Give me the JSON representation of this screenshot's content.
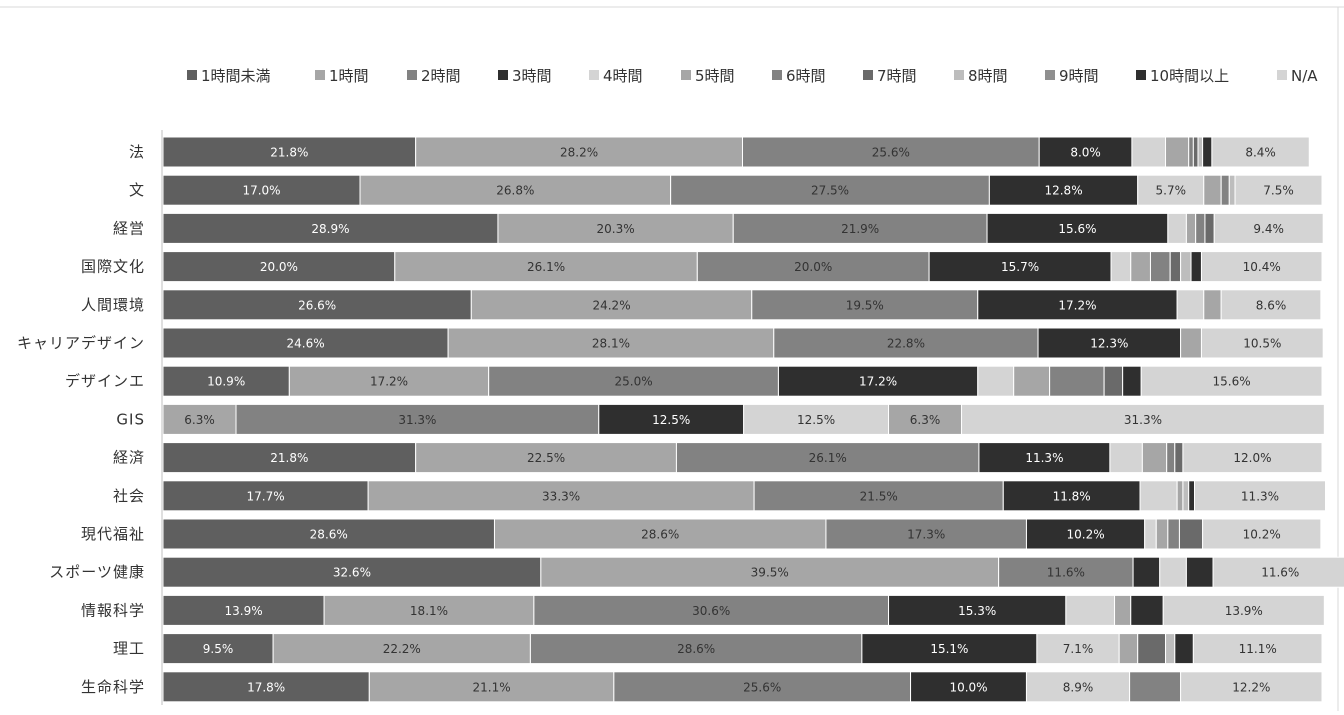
{
  "chart_data": {
    "type": "bar",
    "orientation": "horizontal",
    "stacked": true,
    "normalized_percent": true,
    "legend_position": "top",
    "grid": false,
    "xlim": [
      0,
      100
    ],
    "title": "",
    "xlabel": "",
    "ylabel": "",
    "categories": [
      "法",
      "文",
      "経営",
      "国際文化",
      "人間環境",
      "キャリアデザイン",
      "デザインエ",
      "GIS",
      "経済",
      "社会",
      "現代福祉",
      "スポーツ健康",
      "情報科学",
      "理工",
      "生命科学"
    ],
    "series": [
      {
        "name": "1時間未満",
        "color": "#5f5f5f",
        "label_color": "#ffffff",
        "values": [
          21.8,
          17.0,
          28.9,
          20.0,
          26.6,
          24.6,
          10.9,
          0,
          21.8,
          17.7,
          28.6,
          32.6,
          13.9,
          9.5,
          17.8
        ]
      },
      {
        "name": "1時間",
        "color": "#a6a6a6",
        "label_color": "#333333",
        "values": [
          28.2,
          26.8,
          20.3,
          26.1,
          24.2,
          28.1,
          17.2,
          6.3,
          22.5,
          33.3,
          28.6,
          39.5,
          18.1,
          22.2,
          21.1
        ]
      },
      {
        "name": "2時間",
        "color": "#828282",
        "label_color": "#333333",
        "values": [
          25.6,
          27.5,
          21.9,
          20.0,
          19.5,
          22.8,
          25.0,
          31.3,
          26.1,
          21.5,
          17.3,
          11.6,
          30.6,
          28.6,
          25.6
        ]
      },
      {
        "name": "3時間",
        "color": "#2f2f2f",
        "label_color": "#ffffff",
        "values": [
          8.0,
          12.8,
          15.6,
          15.7,
          17.2,
          12.3,
          17.2,
          12.5,
          11.3,
          11.8,
          10.2,
          2.3,
          15.3,
          15.1,
          10.0
        ]
      },
      {
        "name": "4時間",
        "color": "#d4d4d4",
        "label_color": "#333333",
        "values": [
          2.9,
          5.7,
          1.6,
          1.7,
          2.3,
          0,
          3.1,
          12.5,
          2.8,
          3.2,
          1.0,
          2.3,
          4.2,
          7.1,
          8.9
        ]
      },
      {
        "name": "5時間",
        "color": "#a6a6a6",
        "label_color": "#333333",
        "values": [
          2.0,
          1.5,
          0.8,
          1.7,
          1.5,
          1.8,
          3.1,
          6.3,
          2.1,
          0.5,
          1.0,
          0,
          1.4,
          1.6,
          0
        ]
      },
      {
        "name": "6時間",
        "color": "#828282",
        "label_color": "#333333",
        "values": [
          0.4,
          0.7,
          0.8,
          1.7,
          0,
          0,
          4.7,
          0,
          0.7,
          0,
          1.0,
          0,
          0,
          0,
          4.4
        ]
      },
      {
        "name": "7時間",
        "color": "#6a6a6a",
        "label_color": "#ffffff",
        "values": [
          0.4,
          0,
          0.8,
          0.9,
          0,
          0,
          1.6,
          0,
          0.7,
          0,
          2.0,
          0,
          0,
          2.4,
          0
        ]
      },
      {
        "name": "8時間",
        "color": "#bdbdbd",
        "label_color": "#333333",
        "values": [
          0.4,
          0.5,
          0,
          0.9,
          0,
          0,
          0,
          0,
          0,
          0.5,
          0,
          0,
          0,
          0.8,
          0
        ]
      },
      {
        "name": "9時間",
        "color": "#8f8f8f",
        "label_color": "#333333",
        "values": [
          0,
          0,
          0,
          0,
          0,
          0,
          0,
          0,
          0,
          0,
          0,
          0,
          0,
          0,
          0
        ]
      },
      {
        "name": "10時間以上",
        "color": "#2f2f2f",
        "label_color": "#ffffff",
        "values": [
          0.8,
          0,
          0,
          0.9,
          0,
          0,
          1.6,
          0,
          0,
          0.5,
          0,
          2.3,
          2.8,
          1.6,
          0
        ]
      },
      {
        "name": "N/A",
        "color": "#d4d4d4",
        "label_color": "#333333",
        "values": [
          8.4,
          7.5,
          9.4,
          10.4,
          8.6,
          10.5,
          15.6,
          31.3,
          12.0,
          11.3,
          10.2,
          11.6,
          13.9,
          11.1,
          12.2
        ]
      }
    ],
    "data_labels": [
      [
        "21.8%",
        "28.2%",
        "25.6%",
        "8.0%",
        "",
        "",
        "",
        "",
        "",
        "",
        "",
        "8.4%"
      ],
      [
        "17.0%",
        "26.8%",
        "27.5%",
        "12.8%",
        "5.7%",
        "",
        "",
        "",
        "",
        "",
        "",
        "7.5%"
      ],
      [
        "28.9%",
        "20.3%",
        "21.9%",
        "15.6%",
        "",
        "",
        "",
        "",
        "",
        "",
        "",
        "9.4%"
      ],
      [
        "20.0%",
        "26.1%",
        "20.0%",
        "15.7%",
        "",
        "",
        "",
        "",
        "",
        "",
        "",
        "10.4%"
      ],
      [
        "26.6%",
        "24.2%",
        "19.5%",
        "17.2%",
        "",
        "",
        "",
        "",
        "",
        "",
        "",
        "8.6%"
      ],
      [
        "24.6%",
        "28.1%",
        "22.8%",
        "12.3%",
        "",
        "",
        "",
        "",
        "",
        "",
        "",
        "10.5%"
      ],
      [
        "10.9%",
        "17.2%",
        "25.0%",
        "17.2%",
        "",
        "",
        "",
        "",
        "",
        "",
        "",
        "15.6%"
      ],
      [
        "",
        "6.3%",
        "31.3%",
        "12.5%",
        "12.5%",
        "6.3%",
        "",
        "",
        "",
        "",
        "",
        "31.3%"
      ],
      [
        "21.8%",
        "22.5%",
        "26.1%",
        "11.3%",
        "",
        "",
        "",
        "",
        "",
        "",
        "",
        "12.0%"
      ],
      [
        "17.7%",
        "33.3%",
        "21.5%",
        "11.8%",
        "",
        "",
        "",
        "",
        "",
        "",
        "",
        "11.3%"
      ],
      [
        "28.6%",
        "28.6%",
        "17.3%",
        "10.2%",
        "",
        "",
        "",
        "",
        "",
        "",
        "",
        "10.2%"
      ],
      [
        "32.6%",
        "39.5%",
        "11.6%",
        "",
        "",
        "",
        "",
        "",
        "",
        "",
        "",
        "11.6%"
      ],
      [
        "13.9%",
        "18.1%",
        "30.6%",
        "15.3%",
        "",
        "",
        "",
        "",
        "",
        "",
        "",
        "13.9%"
      ],
      [
        "9.5%",
        "22.2%",
        "28.6%",
        "15.1%",
        "7.1%",
        "",
        "",
        "",
        "",
        "",
        "",
        "11.1%"
      ],
      [
        "17.8%",
        "21.1%",
        "25.6%",
        "10.0%",
        "8.9%",
        "",
        "",
        "",
        "",
        "",
        "",
        "12.2%"
      ]
    ]
  }
}
